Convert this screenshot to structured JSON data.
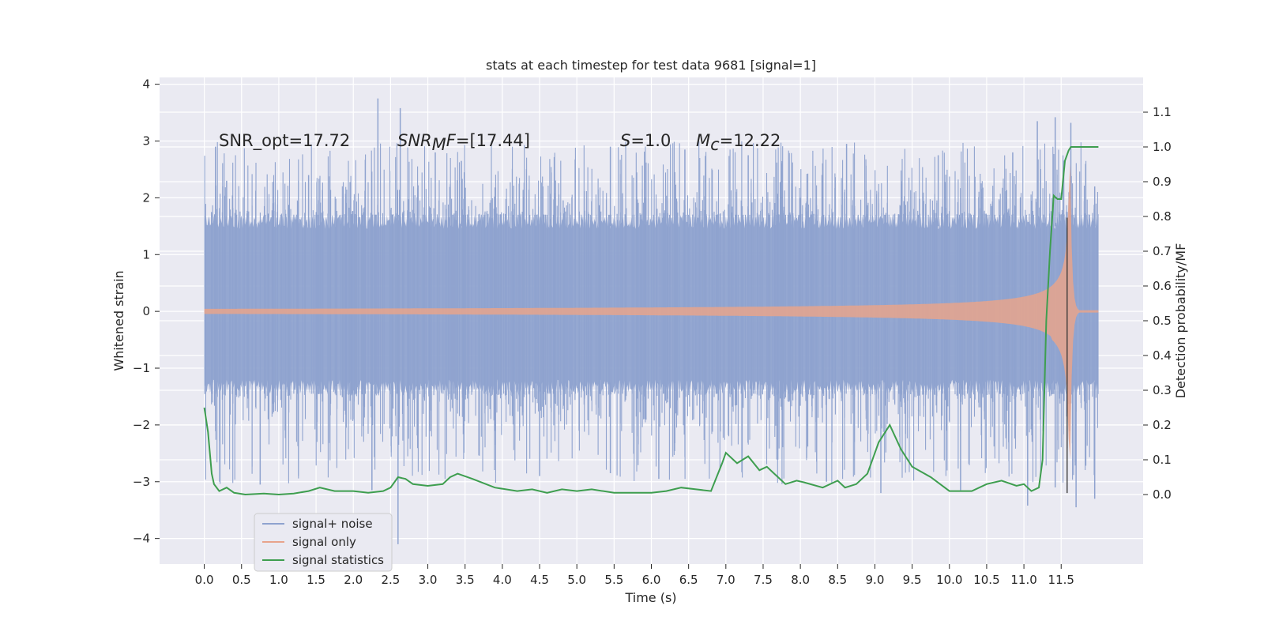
{
  "chart_data": {
    "type": "line",
    "title": "stats at each timestep for test data 9681 [signal=1]",
    "xlabel": "Time (s)",
    "ylabel": "Whitened strain",
    "y2label": "Detection probability/MF",
    "xlim": [
      -0.6,
      12.6
    ],
    "ylim": [
      -4.45,
      4.12
    ],
    "y2lim": [
      -0.2,
      1.2
    ],
    "x_ticks": [
      "0.0",
      "0.5",
      "1.0",
      "1.5",
      "2.0",
      "2.5",
      "3.0",
      "3.5",
      "4.0",
      "4.5",
      "5.0",
      "5.5",
      "6.0",
      "6.5",
      "7.0",
      "7.5",
      "8.0",
      "8.5",
      "9.0",
      "9.5",
      "10.0",
      "10.5",
      "11.0",
      "11.5"
    ],
    "y_ticks": [
      "4",
      "3",
      "2",
      "1",
      "0",
      "−1",
      "−2",
      "−3",
      "−4"
    ],
    "y2_ticks": [
      "1.1",
      "1.0",
      "0.9",
      "0.8",
      "0.7",
      "0.6",
      "0.5",
      "0.4",
      "0.3",
      "0.2",
      "0.1",
      "0.0"
    ],
    "grid": true,
    "legend_position": "lower-left",
    "annotations": {
      "snr_opt": "SNR_opt=17.72",
      "snr_mf_name": "SNR",
      "snr_mf_sub": "M",
      "snr_mf_tail": "F=[17.44]",
      "s_name": "S",
      "s_value": "=1.0",
      "mc_name": "M",
      "mc_sub": "c",
      "mc_value": "=12.22"
    },
    "marker_time": 11.58,
    "series": [
      {
        "name": "signal+ noise",
        "color": "#8fa3cf",
        "x_range": [
          0.0,
          12.0
        ],
        "envelope_upper": 1.7,
        "envelope_lower": -1.45,
        "peaks": [
          [
            2.33,
            3.75
          ],
          [
            2.63,
            3.58
          ],
          [
            11.42,
            3.42
          ],
          [
            11.18,
            3.35
          ],
          [
            0.15,
            2.9
          ],
          [
            0.3,
            2.3
          ],
          [
            1.4,
            2.4
          ],
          [
            3.1,
            2.8
          ],
          [
            3.45,
            2.65
          ],
          [
            5.45,
            2.9
          ],
          [
            6.45,
            2.85
          ],
          [
            7.3,
            2.75
          ],
          [
            8.62,
            2.95
          ],
          [
            9.85,
            2.75
          ],
          [
            10.85,
            2.8
          ],
          [
            11.63,
            3.32
          ],
          [
            11.95,
            2.2
          ]
        ],
        "troughs": [
          [
            2.6,
            -4.1
          ],
          [
            11.7,
            -3.45
          ],
          [
            11.95,
            -3.3
          ],
          [
            11.05,
            -3.42
          ],
          [
            0.75,
            -3.05
          ],
          [
            2.25,
            -3.15
          ],
          [
            4.5,
            -2.9
          ],
          [
            9.08,
            -3.2
          ],
          [
            10.15,
            -3.15
          ],
          [
            11.42,
            -3.1
          ],
          [
            8.35,
            -3.0
          ],
          [
            5.45,
            -2.85
          ],
          [
            6.1,
            -2.95
          ]
        ]
      },
      {
        "name": "signal only",
        "color": "#e8a48c",
        "x_range": [
          0.0,
          12.0
        ],
        "merger_time": 11.62,
        "merger_peak": 2.6,
        "merger_trough": -2.85
      },
      {
        "name": "signal statistics",
        "color": "#3e9e4f",
        "x": [
          0.0,
          0.05,
          0.1,
          0.13,
          0.2,
          0.3,
          0.4,
          0.55,
          0.8,
          1.0,
          1.2,
          1.4,
          1.55,
          1.75,
          2.0,
          2.2,
          2.4,
          2.5,
          2.6,
          2.7,
          2.8,
          3.0,
          3.2,
          3.3,
          3.4,
          3.6,
          3.9,
          4.2,
          4.4,
          4.6,
          4.8,
          5.0,
          5.2,
          5.5,
          6.0,
          6.2,
          6.4,
          6.6,
          6.8,
          6.95,
          7.0,
          7.15,
          7.3,
          7.45,
          7.55,
          7.65,
          7.8,
          7.95,
          8.05,
          8.3,
          8.5,
          8.6,
          8.75,
          8.9,
          9.0,
          9.05,
          9.2,
          9.35,
          9.5,
          9.75,
          10.0,
          10.3,
          10.5,
          10.7,
          10.9,
          11.0,
          11.1,
          11.2,
          11.25,
          11.3,
          11.35,
          11.4,
          11.45,
          11.5,
          11.55,
          11.6,
          11.63,
          11.7,
          11.8,
          11.9,
          11.95,
          12.0
        ],
        "values": [
          0.25,
          0.18,
          0.06,
          0.03,
          0.01,
          0.02,
          0.005,
          0.0,
          0.003,
          0.0,
          0.003,
          0.01,
          0.02,
          0.01,
          0.01,
          0.005,
          0.01,
          0.02,
          0.05,
          0.045,
          0.03,
          0.025,
          0.03,
          0.05,
          0.06,
          0.045,
          0.02,
          0.01,
          0.015,
          0.005,
          0.015,
          0.01,
          0.015,
          0.005,
          0.005,
          0.01,
          0.02,
          0.015,
          0.01,
          0.09,
          0.12,
          0.09,
          0.11,
          0.07,
          0.08,
          0.06,
          0.03,
          0.04,
          0.035,
          0.02,
          0.04,
          0.02,
          0.03,
          0.06,
          0.12,
          0.15,
          0.2,
          0.13,
          0.08,
          0.05,
          0.01,
          0.01,
          0.03,
          0.04,
          0.025,
          0.03,
          0.01,
          0.02,
          0.1,
          0.5,
          0.7,
          0.86,
          0.85,
          0.85,
          0.96,
          0.99,
          1.0,
          1.0,
          1.0,
          1.0,
          1.0,
          1.0
        ]
      }
    ]
  }
}
